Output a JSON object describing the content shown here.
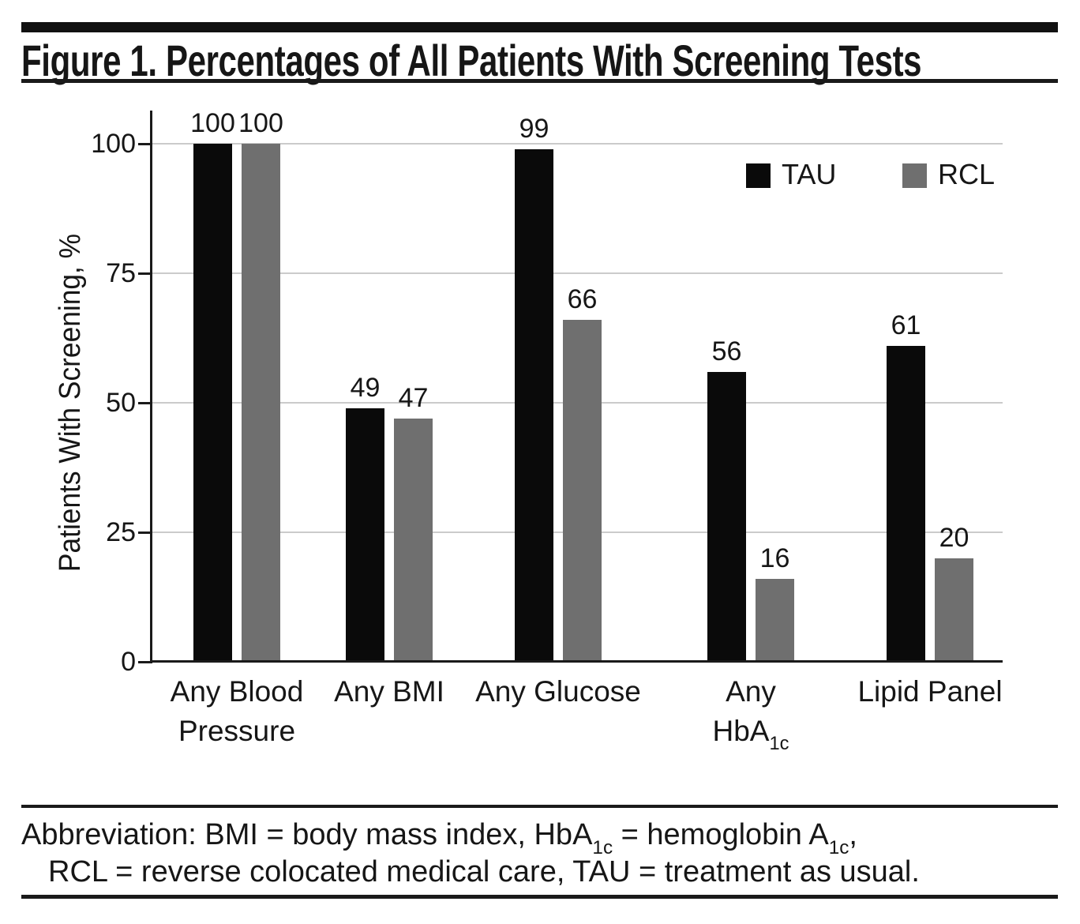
{
  "figure": {
    "title": "Figure 1. Percentages of All Patients With Screening Tests"
  },
  "chart_data": {
    "type": "bar",
    "title": "Figure 1. Percentages of All Patients With Screening Tests",
    "ylabel": "Patients With Screening, %",
    "xlabel": "",
    "ylim": [
      0,
      100
    ],
    "yticks": [
      0,
      25,
      50,
      75,
      100
    ],
    "grid": "horizontal",
    "legend_position": "top-right",
    "bar_value_labels": true,
    "categories": [
      "Any Blood Pressure",
      "Any BMI",
      "Any Glucose",
      "Any HbA1c",
      "Lipid Panel"
    ],
    "series": [
      {
        "name": "TAU",
        "color": "#0a0a0a",
        "values": [
          100,
          49,
          99,
          56,
          61
        ]
      },
      {
        "name": "RCL",
        "color": "#6f6f6f",
        "values": [
          100,
          47,
          66,
          16,
          20
        ]
      }
    ]
  },
  "footnote": {
    "lines": [
      "Abbreviation: BMI = body mass index, HbA1c = hemoglobin A1c,",
      "RCL = reverse colocated medical care, TAU = treatment as usual."
    ]
  }
}
